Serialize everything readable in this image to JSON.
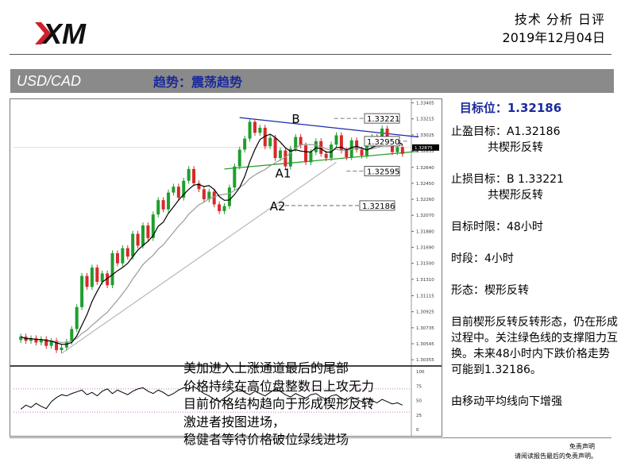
{
  "header": {
    "logo_text": "XM",
    "title": "技术 分析 日评",
    "date": "2019年12月04日"
  },
  "titlebar": {
    "pair": "USD/CAD",
    "trend": "趋势：震荡趋势"
  },
  "colors": {
    "brand_red": "#d0202e",
    "title_blue": "#1a2a9c",
    "titlebar_gray": "#8a8a8a",
    "candle_up": "#1f9e2e",
    "candle_down": "#d62a2a",
    "resistance_line": "#1a2aa8",
    "support_line": "#28a028",
    "ma_fast": "#000000",
    "ma_slow": "#9a9a9a",
    "indicator": "#000000"
  },
  "chart_data": {
    "type": "candlestick",
    "symbol": "USD/CAD",
    "timeframe": "4小时",
    "y_axis": {
      "ticks": [
        "1.33405",
        "1.33215",
        "1.33025",
        "1.32835",
        "1.32640",
        "1.32450",
        "1.32260",
        "1.32070",
        "1.31880",
        "1.31690",
        "1.31500",
        "1.31310",
        "1.31115",
        "1.30925",
        "1.30735",
        "1.30545",
        "1.30355"
      ],
      "ylim": [
        1.303,
        1.3342
      ]
    },
    "current_price": "1.32875",
    "price_boxes": [
      {
        "label": "1.33221",
        "value": 1.33221
      },
      {
        "label": "1.32950",
        "value": 1.3295
      },
      {
        "label": "1.32595",
        "value": 1.32595
      },
      {
        "label": "1.32186",
        "value": 1.32186
      }
    ],
    "point_labels": [
      "B",
      "A1",
      "A2"
    ],
    "indicator": {
      "ticks": [
        "100",
        "75",
        "50",
        "25",
        "0"
      ],
      "range": [
        0,
        100
      ],
      "dotted_levels": [
        70,
        30
      ]
    },
    "closes": [
      1.3063,
      1.3058,
      1.3061,
      1.3056,
      1.306,
      1.3052,
      1.3058,
      1.3047,
      1.305,
      1.3057,
      1.3072,
      1.3098,
      1.3135,
      1.3122,
      1.3145,
      1.3128,
      1.3138,
      1.3124,
      1.3162,
      1.315,
      1.3168,
      1.3158,
      1.3185,
      1.3171,
      1.3195,
      1.318,
      1.3208,
      1.3225,
      1.3214,
      1.3234,
      1.3241,
      1.3228,
      1.3248,
      1.3262,
      1.3245,
      1.3238,
      1.3226,
      1.3235,
      1.322,
      1.3212,
      1.3218,
      1.324,
      1.3265,
      1.3285,
      1.3298,
      1.3318,
      1.3305,
      1.3311,
      1.3289,
      1.3299,
      1.3275,
      1.3284,
      1.3265,
      1.3286,
      1.33,
      1.329,
      1.327,
      1.3282,
      1.3295,
      1.328,
      1.3275,
      1.3291,
      1.3302,
      1.3284,
      1.3276,
      1.3296,
      1.3285,
      1.3278,
      1.3289,
      1.33,
      1.3292,
      1.331,
      1.3295,
      1.3282,
      1.3288,
      1.328
    ],
    "osc": [
      35,
      42,
      38,
      45,
      40,
      36,
      48,
      55,
      60,
      58,
      62,
      65,
      68,
      60,
      64,
      58,
      66,
      70,
      62,
      68,
      64,
      60,
      66,
      70,
      72,
      66,
      62,
      68,
      64,
      58,
      62,
      68,
      72,
      70,
      74,
      68,
      62,
      58,
      52,
      48,
      54,
      60,
      66,
      70,
      64,
      60,
      66,
      62,
      58,
      64,
      70,
      66,
      60,
      56,
      62,
      58,
      54,
      60,
      62,
      56,
      52,
      58,
      60,
      54,
      50,
      56,
      52,
      48,
      54,
      50,
      46,
      52,
      48,
      44,
      46,
      42
    ],
    "annotations": [
      "美加进入上涨通道最后的尾部",
      "价格持续在高位盘整数日上攻无力",
      "目前价格结构趋向于形成楔形反转",
      "激进者按图进场，",
      "稳健者等待价格破位绿线进场"
    ]
  },
  "analysis": {
    "target_label": "目标位：1.32186",
    "take_profit_line1": "止盈目标：A1.32186",
    "take_profit_line2": "共楔形反转",
    "stop_loss_line1": "止损目标：B 1.33221",
    "stop_loss_line2": "共楔形反转",
    "time_limit": "目标时限：48小时",
    "timeframe": "时段：4小时",
    "pattern": "形态：楔形反转",
    "description": "目前楔形反转反转形态，仍在形成过程中。关注绿色线的支撑阻力互换。未来48小时内下跌价格走势可能到1.32186。",
    "ma_note": "由移动平均线向下增强"
  },
  "disclaimer": {
    "line1": "免责声明",
    "line2": "请阅读报告最后的免责声明。"
  }
}
